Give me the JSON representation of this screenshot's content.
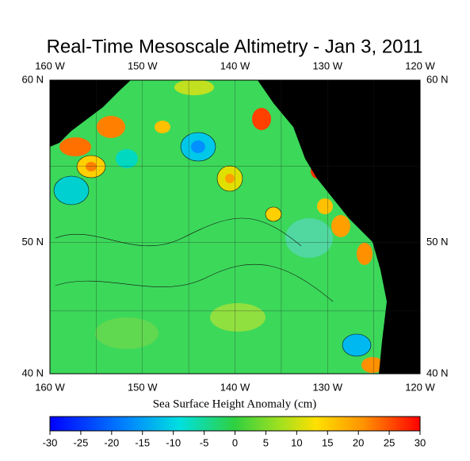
{
  "title": "Real-Time Mesoscale Altimetry - Jan 3, 2011",
  "map": {
    "lon_labels": [
      "160 W",
      "150 W",
      "140 W",
      "130 W",
      "120 W"
    ],
    "lat_labels": [
      "60 N",
      "50 N",
      "40 N"
    ]
  },
  "colorbar": {
    "label": "Sea Surface Height Anomaly (cm)",
    "lim": [
      -30,
      30
    ],
    "ticks": [
      -30,
      -25,
      -20,
      -15,
      -10,
      -5,
      0,
      5,
      10,
      15,
      20,
      25,
      30
    ]
  }
}
